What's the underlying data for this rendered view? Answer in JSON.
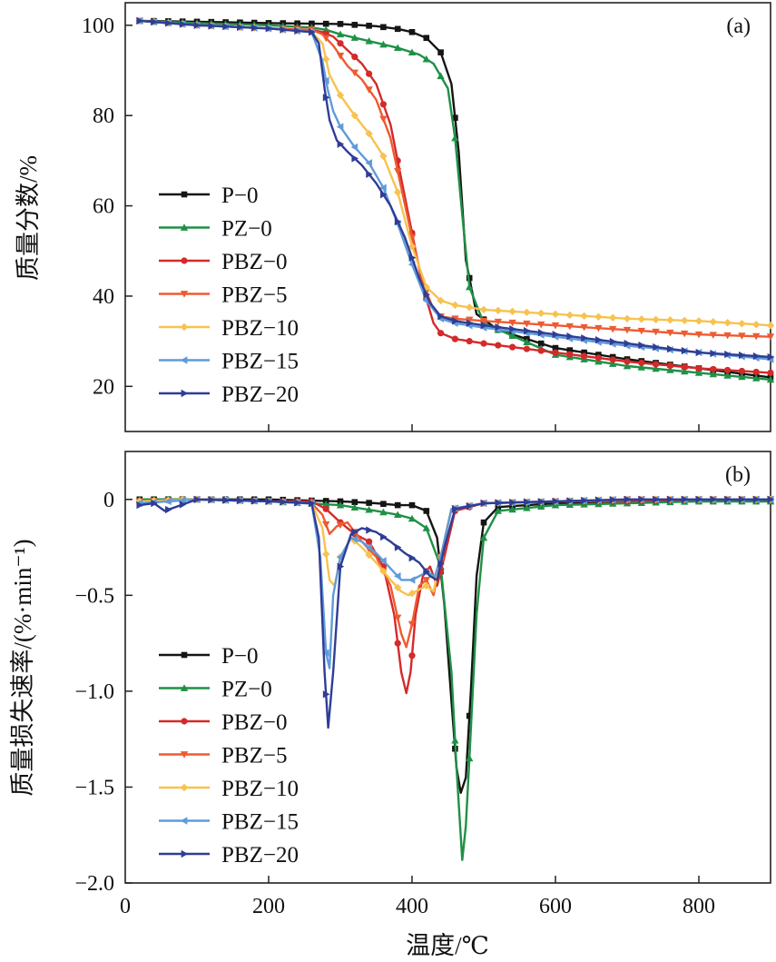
{
  "figure": {
    "xlabel": "温度/℃",
    "colors": {
      "P-0": "#151515",
      "PZ-0": "#1e9146",
      "PBZ-0": "#d32a2a",
      "PBZ-5": "#ee5a31",
      "PBZ-10": "#f7c24f",
      "PBZ-15": "#5f9bd9",
      "PBZ-20": "#2f3d96"
    },
    "legend_order": [
      "P-0",
      "PZ-0",
      "PBZ-0",
      "PBZ-5",
      "PBZ-10",
      "PBZ-15",
      "PBZ-20"
    ]
  },
  "chart_data": [
    {
      "type": "line",
      "panel_label": "(a)",
      "title": "",
      "xlabel": "",
      "ylabel": "质量分数/%",
      "xlim": [
        0,
        900
      ],
      "ylim": [
        10,
        105
      ],
      "xticks": [
        0,
        200,
        400,
        600,
        800
      ],
      "xtick_labels": [
        "",
        "",
        "",
        "",
        ""
      ],
      "yticks": [
        20,
        40,
        60,
        80,
        100
      ],
      "ytick_labels": [
        "20",
        "40",
        "60",
        "80",
        "100"
      ],
      "grid": false,
      "legend_position": "lower-left",
      "series": [
        {
          "name": "P-0",
          "marker": "square",
          "x": [
            20,
            100,
            200,
            300,
            350,
            380,
            400,
            420,
            440,
            455,
            465,
            475,
            490,
            520,
            600,
            700,
            800,
            900
          ],
          "y": [
            101,
            100.8,
            100.5,
            100.3,
            99.8,
            99.2,
            98.5,
            97.2,
            94,
            87,
            72,
            48,
            36,
            32.5,
            28.5,
            26,
            24,
            22
          ]
        },
        {
          "name": "PZ-0",
          "marker": "triangle-up",
          "x": [
            20,
            100,
            200,
            260,
            280,
            300,
            340,
            380,
            410,
            430,
            450,
            460,
            470,
            480,
            500,
            600,
            700,
            800,
            900
          ],
          "y": [
            101,
            100.5,
            100,
            99.5,
            99,
            98,
            96.5,
            95,
            93.5,
            91.5,
            86,
            75,
            58,
            42,
            34,
            27,
            24.5,
            23,
            21.5
          ]
        },
        {
          "name": "PBZ-0",
          "marker": "circle",
          "x": [
            20,
            100,
            200,
            260,
            275,
            290,
            310,
            330,
            350,
            370,
            385,
            400,
            415,
            430,
            440,
            460,
            500,
            600,
            700,
            800,
            900
          ],
          "y": [
            101,
            100,
            99.3,
            99,
            98.5,
            97.5,
            94.5,
            91.5,
            87,
            78,
            66,
            54,
            42,
            34,
            31.8,
            30.5,
            29.5,
            27.5,
            25.5,
            24,
            23
          ]
        },
        {
          "name": "PBZ-5",
          "marker": "triangle-down",
          "x": [
            20,
            100,
            200,
            260,
            275,
            290,
            310,
            330,
            350,
            370,
            385,
            400,
            415,
            430,
            440,
            460,
            500,
            600,
            700,
            800,
            900
          ],
          "y": [
            101,
            100,
            99.3,
            99,
            98,
            95.5,
            91,
            88,
            83.5,
            75,
            64,
            53,
            43,
            37,
            35.5,
            35,
            34.5,
            33.5,
            32.5,
            31.5,
            31
          ]
        },
        {
          "name": "PBZ-10",
          "marker": "diamond",
          "x": [
            20,
            100,
            200,
            260,
            275,
            285,
            300,
            320,
            340,
            360,
            380,
            400,
            420,
            440,
            460,
            500,
            600,
            700,
            800,
            900
          ],
          "y": [
            101,
            100,
            99.3,
            98.5,
            96,
            89,
            84.5,
            80,
            76,
            71,
            63,
            51,
            42,
            39,
            38,
            37,
            36,
            35,
            34.5,
            33.5
          ]
        },
        {
          "name": "PBZ-15",
          "marker": "triangle-left",
          "x": [
            20,
            100,
            200,
            260,
            275,
            282,
            290,
            300,
            320,
            340,
            360,
            380,
            400,
            420,
            440,
            460,
            500,
            600,
            700,
            800,
            900
          ],
          "y": [
            101,
            100,
            99.3,
            98.5,
            92,
            86,
            81,
            77.5,
            73,
            69.5,
            64,
            56,
            47,
            39,
            35,
            34,
            33,
            31,
            29,
            27.5,
            26
          ]
        },
        {
          "name": "PBZ-20",
          "marker": "triangle-right",
          "x": [
            20,
            100,
            200,
            260,
            270,
            278,
            285,
            295,
            310,
            330,
            350,
            370,
            390,
            410,
            425,
            440,
            460,
            500,
            600,
            700,
            800,
            900
          ],
          "y": [
            101,
            100,
            99.3,
            98.5,
            96,
            86,
            79,
            74.5,
            72,
            69,
            65,
            60,
            53,
            44,
            38.5,
            35.5,
            34.5,
            33.5,
            31.5,
            29.5,
            27.5,
            26.5
          ]
        }
      ]
    },
    {
      "type": "line",
      "panel_label": "(b)",
      "title": "",
      "xlabel": "温度/℃",
      "ylabel": "质量损失速率/(%·min⁻¹)",
      "xlim": [
        0,
        900
      ],
      "ylim": [
        -2.0,
        0.25
      ],
      "xticks": [
        0,
        200,
        400,
        600,
        800
      ],
      "xtick_labels": [
        "0",
        "200",
        "400",
        "600",
        "800"
      ],
      "yticks": [
        -2.0,
        -1.5,
        -1.0,
        -0.5,
        0
      ],
      "ytick_labels": [
        "−2.0",
        "−1.5",
        "−1.0",
        "−0.5",
        "0"
      ],
      "grid": false,
      "legend_position": "lower-left",
      "series": [
        {
          "name": "P-0",
          "marker": "square",
          "x": [
            20,
            100,
            200,
            300,
            350,
            380,
            400,
            420,
            435,
            445,
            455,
            462,
            468,
            475,
            482,
            490,
            500,
            520,
            600,
            700,
            800,
            900
          ],
          "y": [
            0,
            0,
            0,
            -0.01,
            -0.02,
            -0.03,
            -0.03,
            -0.06,
            -0.2,
            -0.55,
            -1.05,
            -1.4,
            -1.53,
            -1.45,
            -1.0,
            -0.4,
            -0.12,
            -0.04,
            -0.02,
            -0.01,
            -0.01,
            -0.01
          ]
        },
        {
          "name": "PZ-0",
          "marker": "triangle-up",
          "x": [
            20,
            100,
            200,
            300,
            350,
            380,
            400,
            420,
            440,
            455,
            462,
            470,
            475,
            480,
            490,
            500,
            520,
            600,
            700,
            800,
            900
          ],
          "y": [
            0,
            0,
            -0.01,
            -0.03,
            -0.06,
            -0.08,
            -0.1,
            -0.15,
            -0.35,
            -0.9,
            -1.4,
            -1.88,
            -1.7,
            -1.35,
            -0.6,
            -0.2,
            -0.06,
            -0.03,
            -0.02,
            -0.01,
            -0.01
          ]
        },
        {
          "name": "PBZ-0",
          "marker": "circle",
          "x": [
            20,
            100,
            200,
            260,
            280,
            300,
            320,
            340,
            360,
            375,
            385,
            392,
            398,
            405,
            415,
            425,
            435,
            445,
            460,
            500,
            600,
            700,
            800,
            900
          ],
          "y": [
            -0.01,
            0,
            -0.01,
            -0.01,
            -0.05,
            -0.12,
            -0.18,
            -0.22,
            -0.35,
            -0.6,
            -0.9,
            -1.01,
            -0.9,
            -0.6,
            -0.4,
            -0.35,
            -0.45,
            -0.3,
            -0.06,
            -0.02,
            -0.01,
            -0.01,
            0,
            0
          ]
        },
        {
          "name": "PBZ-5",
          "marker": "triangle-down",
          "x": [
            20,
            100,
            200,
            260,
            275,
            285,
            295,
            310,
            330,
            350,
            370,
            385,
            392,
            400,
            410,
            420,
            430,
            440,
            455,
            500,
            600,
            700,
            800,
            900
          ],
          "y": [
            -0.01,
            0,
            -0.01,
            -0.02,
            -0.08,
            -0.18,
            -0.14,
            -0.12,
            -0.22,
            -0.3,
            -0.45,
            -0.7,
            -0.77,
            -0.65,
            -0.45,
            -0.42,
            -0.5,
            -0.3,
            -0.05,
            -0.02,
            -0.01,
            0,
            0,
            0
          ]
        },
        {
          "name": "PBZ-10",
          "marker": "diamond",
          "x": [
            20,
            100,
            200,
            260,
            275,
            285,
            292,
            300,
            315,
            330,
            350,
            370,
            385,
            395,
            405,
            420,
            430,
            440,
            455,
            500,
            600,
            700,
            800,
            900
          ],
          "y": [
            -0.01,
            0,
            -0.01,
            -0.02,
            -0.15,
            -0.42,
            -0.45,
            -0.3,
            -0.2,
            -0.25,
            -0.33,
            -0.42,
            -0.48,
            -0.5,
            -0.48,
            -0.45,
            -0.48,
            -0.3,
            -0.05,
            -0.02,
            -0.01,
            0,
            0,
            0
          ]
        },
        {
          "name": "PBZ-15",
          "marker": "triangle-left",
          "x": [
            20,
            100,
            200,
            260,
            272,
            280,
            285,
            290,
            300,
            315,
            330,
            350,
            370,
            385,
            400,
            420,
            432,
            440,
            455,
            500,
            600,
            700,
            800,
            900
          ],
          "y": [
            -0.02,
            0,
            -0.01,
            -0.02,
            -0.3,
            -0.8,
            -0.88,
            -0.5,
            -0.3,
            -0.2,
            -0.22,
            -0.28,
            -0.36,
            -0.42,
            -0.42,
            -0.38,
            -0.4,
            -0.3,
            -0.05,
            -0.02,
            -0.01,
            0,
            0,
            0
          ]
        },
        {
          "name": "PBZ-20",
          "marker": "triangle-right",
          "x": [
            20,
            40,
            55,
            70,
            100,
            200,
            260,
            270,
            278,
            283,
            290,
            300,
            315,
            330,
            350,
            370,
            390,
            410,
            425,
            435,
            445,
            460,
            500,
            600,
            700,
            800,
            900
          ],
          "y": [
            -0.03,
            -0.02,
            -0.06,
            -0.04,
            0,
            -0.01,
            -0.02,
            -0.2,
            -0.9,
            -1.19,
            -0.9,
            -0.35,
            -0.18,
            -0.15,
            -0.17,
            -0.22,
            -0.28,
            -0.33,
            -0.4,
            -0.42,
            -0.25,
            -0.05,
            -0.02,
            -0.01,
            0,
            0,
            0
          ]
        }
      ]
    }
  ]
}
